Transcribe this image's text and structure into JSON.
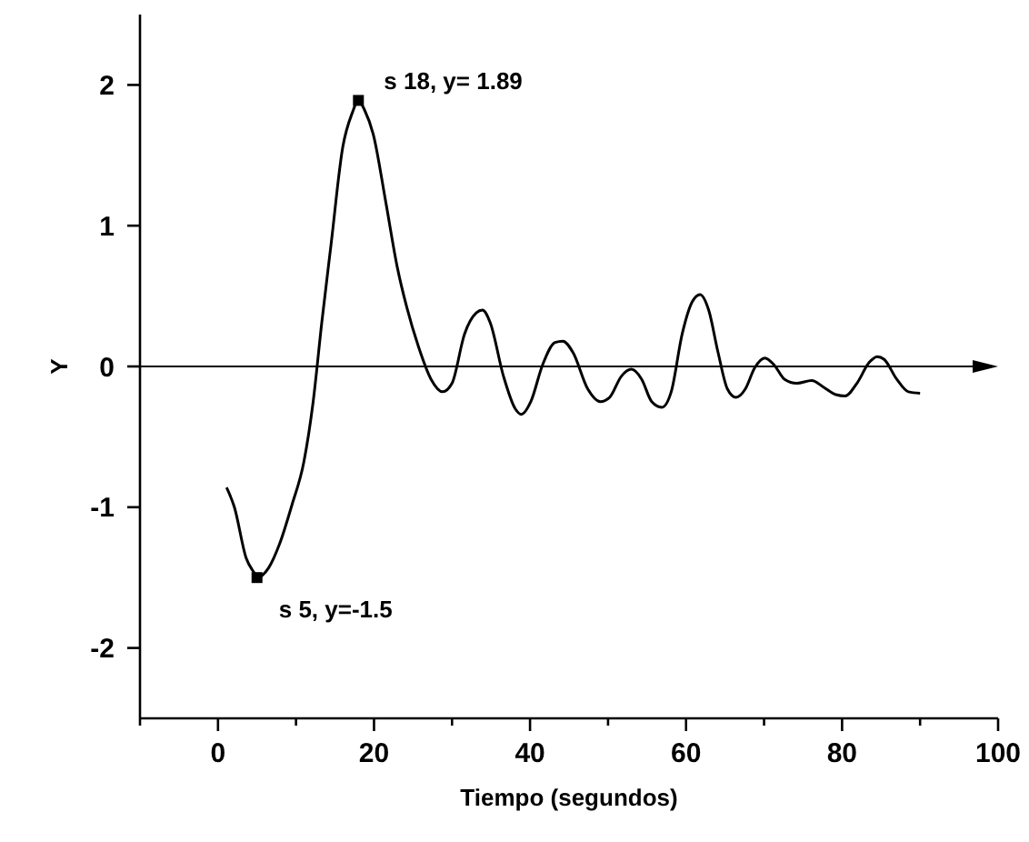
{
  "chart_data": {
    "type": "line",
    "xlabel": "Tiempo (segundos)",
    "ylabel": "Y",
    "xlim": [
      -10,
      100
    ],
    "ylim": [
      -2.5,
      2.5
    ],
    "xticks": [
      {
        "value": -10,
        "label": null
      },
      0,
      {
        "value": 10,
        "label": null
      },
      20,
      {
        "value": 30,
        "label": null
      },
      40,
      {
        "value": 50,
        "label": null
      },
      60,
      {
        "value": 70,
        "label": null
      },
      80,
      {
        "value": 90,
        "label": null
      },
      100
    ],
    "yticks": [
      -2,
      -1,
      0,
      1,
      2
    ],
    "grid": false,
    "line_style": "solid",
    "ref_lines": [
      {
        "axis": "y",
        "value": 0,
        "color": "#000000"
      }
    ],
    "series": [
      {
        "color": "#000000",
        "marker": "none",
        "x": [
          1.1,
          2.1,
          3.6,
          4.8,
          5,
          6.5,
          7.9,
          9.5,
          11,
          12.2,
          13.3,
          14.5,
          16,
          17.2,
          18,
          18.8,
          19.9,
          21.5,
          23,
          24.2,
          25.7,
          27.3,
          28.8,
          30,
          31.6,
          33.1,
          33.9,
          34.9,
          36.6,
          38.1,
          38.9,
          40.1,
          41.6,
          43.2,
          44.2,
          45.5,
          47.4,
          49,
          50.2,
          51.7,
          53,
          54.3,
          55.6,
          56.9,
          58.1,
          59.5,
          60.8,
          61.8,
          62.9,
          64.1,
          65.3,
          66.4,
          67.6,
          68.8,
          70.1,
          71.3,
          72.6,
          74.2,
          76.1,
          77.7,
          79.2,
          80.4,
          81.9,
          83.5,
          84.5,
          85.4,
          87,
          88.5,
          90
        ],
        "values": [
          -0.86,
          -1.0,
          -1.36,
          -1.48,
          -1.5,
          -1.43,
          -1.26,
          -0.98,
          -0.68,
          -0.25,
          0.31,
          0.87,
          1.56,
          1.8,
          1.89,
          1.82,
          1.65,
          1.17,
          0.7,
          0.42,
          0.14,
          -0.09,
          -0.18,
          -0.12,
          0.23,
          0.38,
          0.4,
          0.31,
          -0.07,
          -0.3,
          -0.34,
          -0.25,
          0.01,
          0.17,
          0.18,
          0.1,
          -0.16,
          -0.25,
          -0.22,
          -0.07,
          -0.02,
          -0.09,
          -0.25,
          -0.29,
          -0.18,
          0.23,
          0.46,
          0.51,
          0.4,
          0.1,
          -0.16,
          -0.22,
          -0.16,
          -0.01,
          0.06,
          0.01,
          -0.09,
          -0.12,
          -0.1,
          -0.15,
          -0.2,
          -0.21,
          -0.12,
          0.03,
          0.07,
          0.05,
          -0.09,
          -0.18,
          -0.19
        ]
      },
      {
        "type": "scatter",
        "color": "#000000",
        "marker": "square",
        "x": [
          18,
          5
        ],
        "values": [
          1.89,
          -1.5
        ]
      }
    ],
    "annotations": [
      {
        "text": "s 18, y= 1.89",
        "x": 18,
        "y": 1.89
      },
      {
        "text": "s 5, y=-1.5",
        "x": 5,
        "y": -1.5
      }
    ]
  }
}
